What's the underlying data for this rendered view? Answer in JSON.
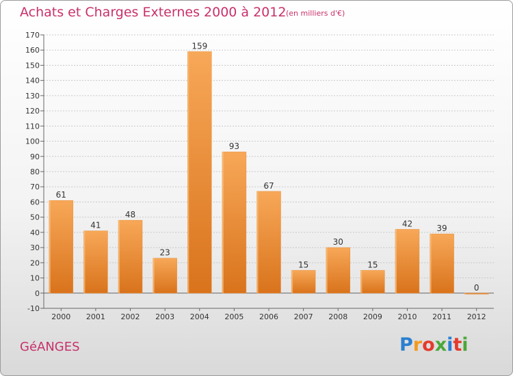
{
  "chart_data": {
    "type": "bar",
    "title": "Achats et Charges Externes 2000 à 2012",
    "unit": "(en milliers d'€)",
    "categories": [
      "2000",
      "2001",
      "2002",
      "2003",
      "2004",
      "2005",
      "2006",
      "2007",
      "2008",
      "2009",
      "2010",
      "2011",
      "2012"
    ],
    "values": [
      61,
      41,
      48,
      23,
      159,
      93,
      67,
      15,
      30,
      15,
      42,
      39,
      0
    ],
    "data_labels": [
      "61",
      "41",
      "48",
      "23",
      "159",
      "93",
      "67",
      "15",
      "30",
      "15",
      "42",
      "39",
      "0"
    ],
    "ylim": [
      -10,
      170
    ],
    "yticks": [
      -10,
      0,
      10,
      20,
      30,
      40,
      50,
      60,
      70,
      80,
      90,
      100,
      110,
      120,
      130,
      140,
      150,
      160,
      170
    ],
    "grid": true,
    "bar_color": "#f0922e",
    "title_color": "#c8306a"
  },
  "place_name": "GéANGES",
  "logo": {
    "letters": [
      "P",
      "r",
      "o",
      "x",
      "i",
      "t",
      "i"
    ],
    "colors": [
      "#2a7fd0",
      "#f29a1f",
      "#e43b2c",
      "#4aa83a",
      "#2a7fd0",
      "#e43b2c",
      "#4aa83a"
    ]
  }
}
